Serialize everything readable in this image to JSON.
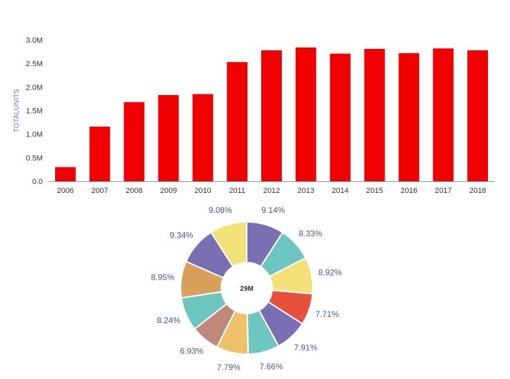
{
  "chart_data": [
    {
      "type": "bar",
      "ylabel": "TOTALUNITS",
      "categories": [
        "2006",
        "2007",
        "2008",
        "2009",
        "2010",
        "2011",
        "2012",
        "2013",
        "2014",
        "2015",
        "2016",
        "2017",
        "2018"
      ],
      "values": [
        0.3,
        1.16,
        1.68,
        1.83,
        1.85,
        2.53,
        2.78,
        2.84,
        2.71,
        2.81,
        2.72,
        2.82,
        2.78
      ],
      "value_unit": "M",
      "yticks": [
        "0.0",
        "0.5M",
        "1.0M",
        "1.5M",
        "2.0M",
        "2.5M",
        "3.0M"
      ],
      "ylim": [
        0,
        3.0
      ],
      "bar_color": "#f00000",
      "grid": false
    },
    {
      "type": "pie",
      "donut": true,
      "center_label": "29M",
      "slices": [
        {
          "value": 9.14,
          "label": "9.14%",
          "color": "#7b6fb4"
        },
        {
          "value": 8.33,
          "label": "8.33%",
          "color": "#6ec6c0"
        },
        {
          "value": 8.92,
          "label": "8.92%",
          "color": "#f3e17a"
        },
        {
          "value": 7.71,
          "label": "7.71%",
          "color": "#e5513a"
        },
        {
          "value": 7.91,
          "label": "7.91%",
          "color": "#7b6fb4"
        },
        {
          "value": 7.66,
          "label": "7.66%",
          "color": "#6ec6c0"
        },
        {
          "value": 7.79,
          "label": "7.79%",
          "color": "#f0c16b"
        },
        {
          "value": 6.93,
          "label": "6.93%",
          "color": "#c0887a"
        },
        {
          "value": 8.24,
          "label": "8.24%",
          "color": "#6ec6c0"
        },
        {
          "value": 8.95,
          "label": "8.95%",
          "color": "#d9a05b"
        },
        {
          "value": 9.34,
          "label": "9.34%",
          "color": "#7b6fb4"
        },
        {
          "value": 9.08,
          "label": "9.08%",
          "color": "#f3e17a"
        }
      ]
    }
  ]
}
